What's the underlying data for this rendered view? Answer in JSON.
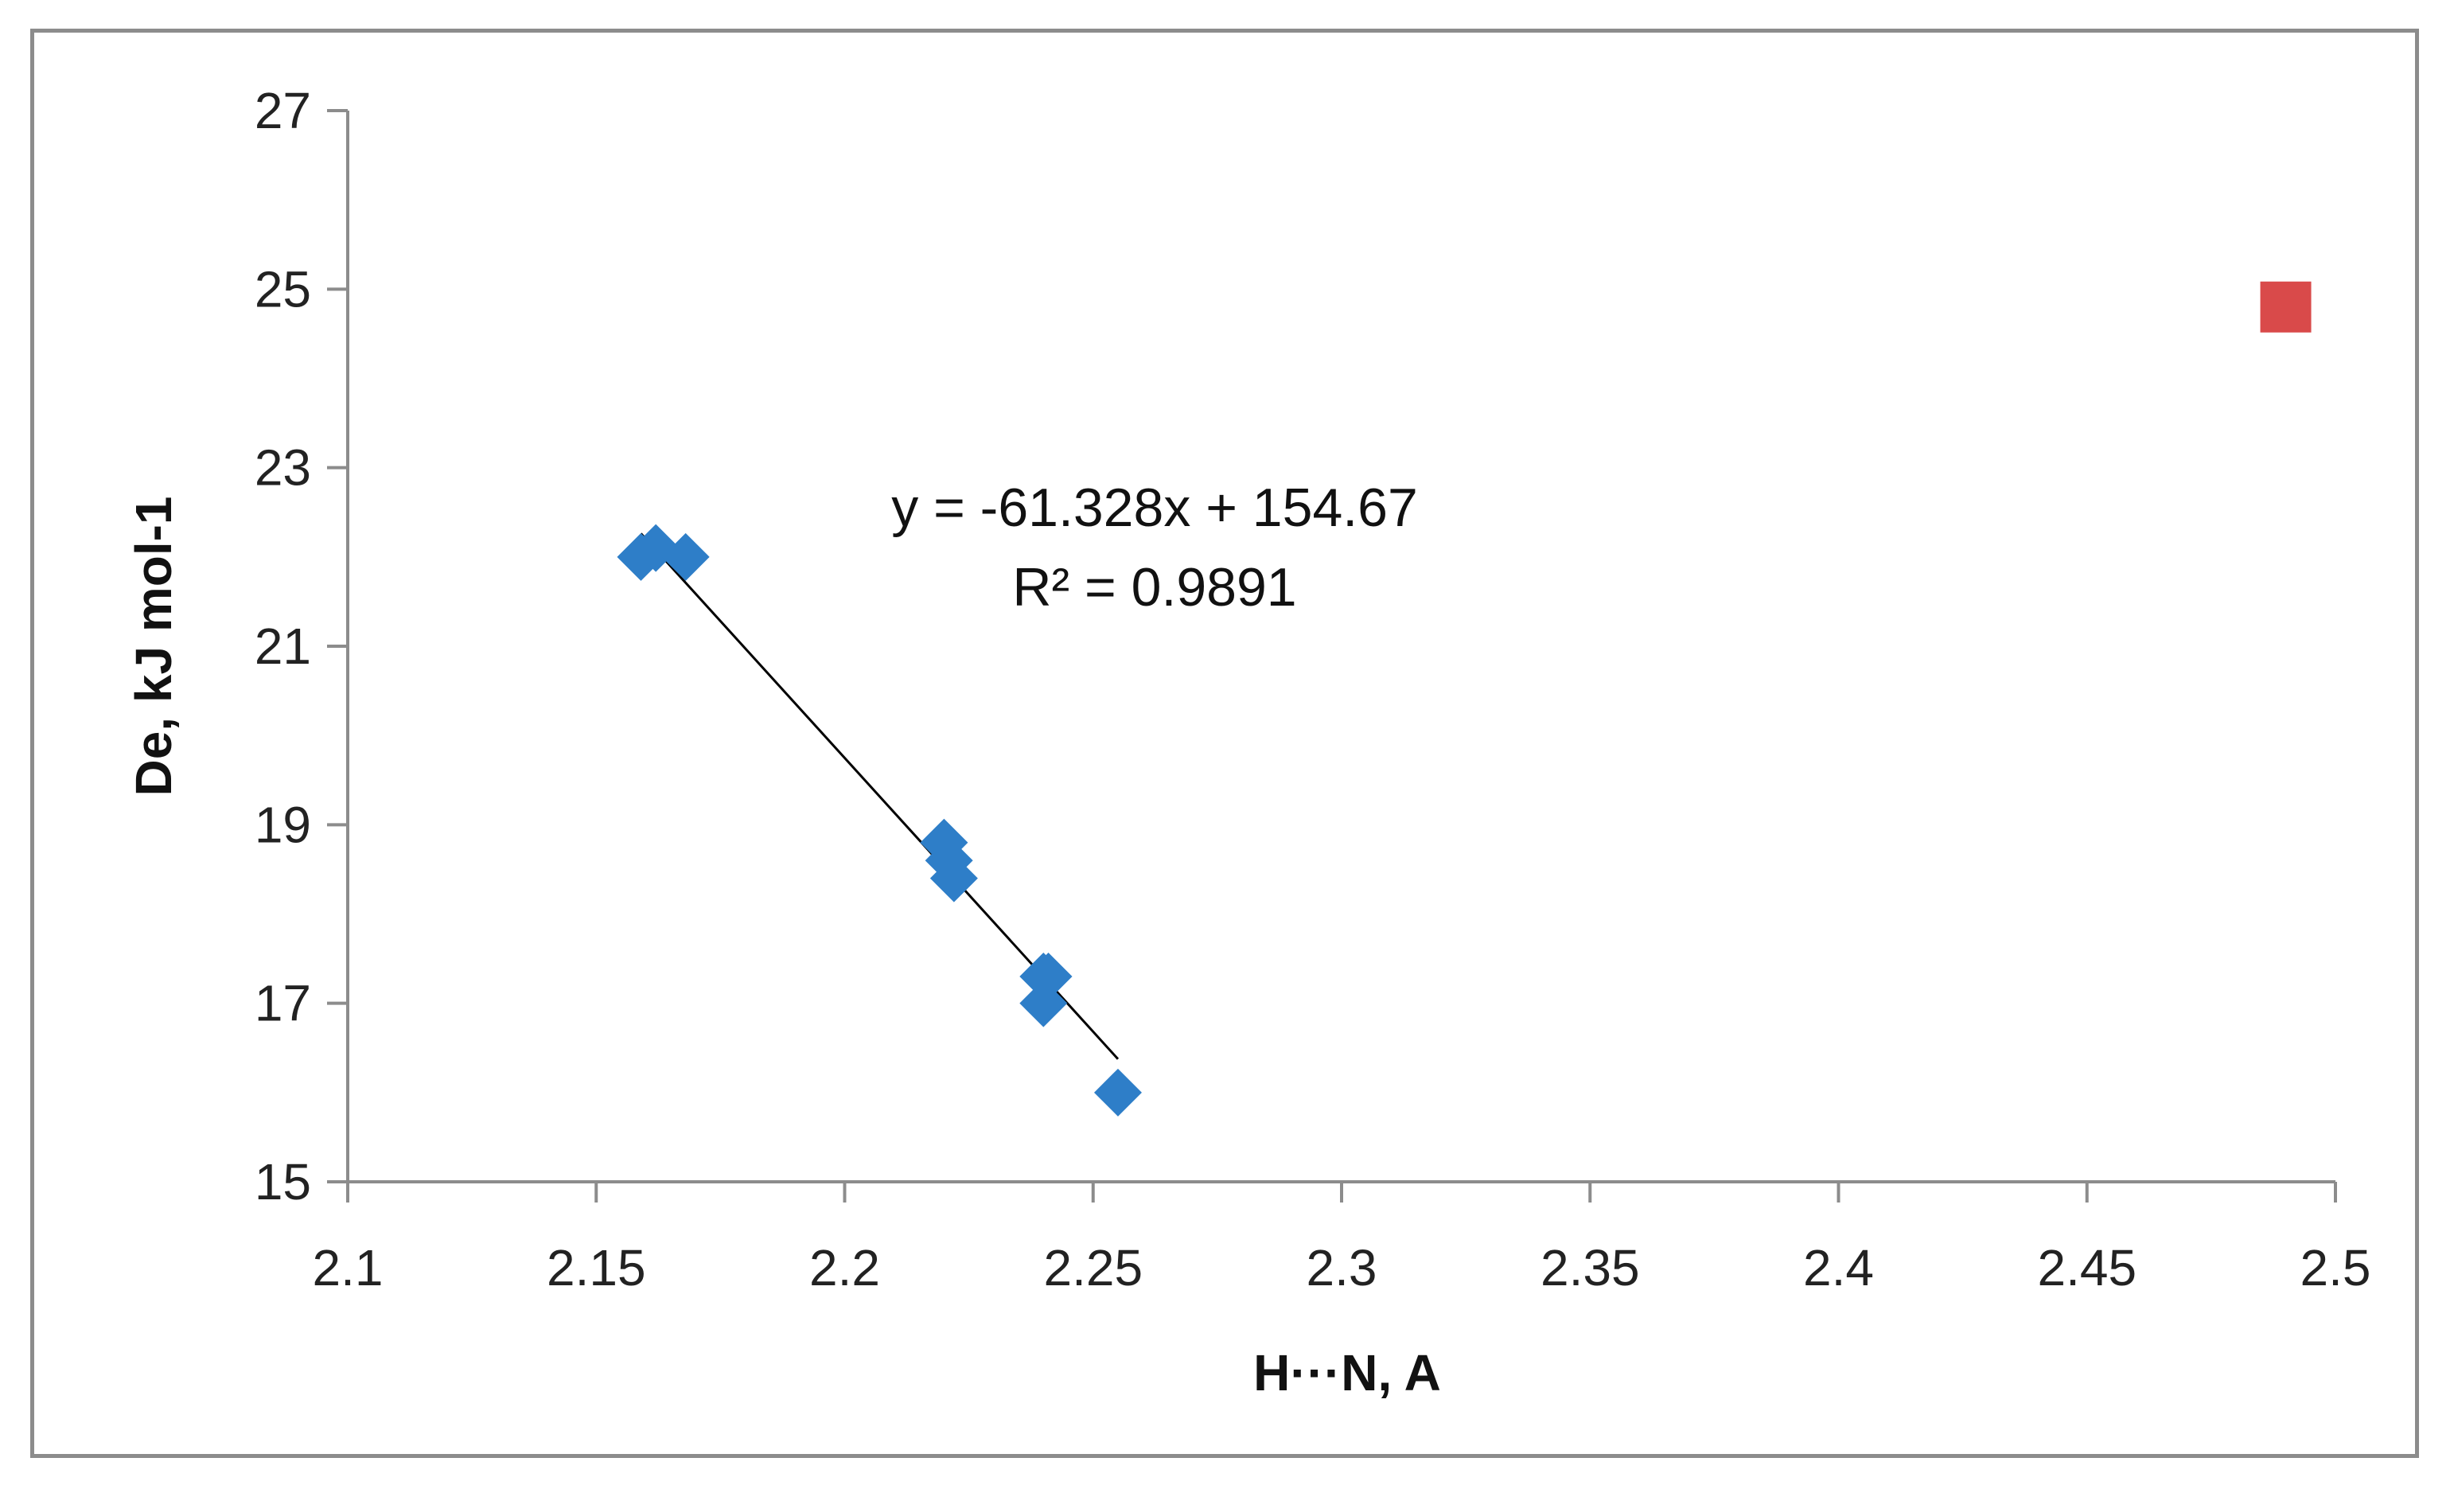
{
  "chart_data": {
    "type": "scatter",
    "title": "",
    "xlabel": "H···N, A",
    "ylabel": "De, kJ mol-1",
    "xlim": [
      2.1,
      2.5
    ],
    "ylim": [
      15,
      27
    ],
    "x_ticks": [
      2.1,
      2.15,
      2.2,
      2.25,
      2.3,
      2.35,
      2.4,
      2.45,
      2.5
    ],
    "x_tick_labels": [
      "2.1",
      "2.15",
      "2.2",
      "2.25",
      "2.3",
      "2.35",
      "2.4",
      "2.45",
      "2.5"
    ],
    "y_ticks": [
      15,
      17,
      19,
      21,
      23,
      25,
      27
    ],
    "y_tick_labels": [
      "15",
      "17",
      "19",
      "21",
      "23",
      "25",
      "27"
    ],
    "grid": false,
    "legend": false,
    "series": [
      {
        "marker": "diamond",
        "color": "#2e7ec8",
        "x": [
          2.159,
          2.162,
          2.168,
          2.22,
          2.221,
          2.222,
          2.24,
          2.241,
          2.24,
          2.255
        ],
        "y": [
          22.0,
          22.1,
          22.0,
          18.8,
          18.6,
          18.4,
          17.3,
          17.3,
          17.0,
          16.0
        ]
      },
      {
        "marker": "square",
        "color": "#d94a4a",
        "x": [
          2.49
        ],
        "y": [
          24.8
        ]
      }
    ],
    "trendline": {
      "slope": -61.328,
      "intercept": 154.67,
      "x_range": [
        2.159,
        2.255
      ],
      "color": "#000000",
      "equation_text": "y = -61.328x + 154.67",
      "r2_text": "R² = 0.9891"
    }
  }
}
